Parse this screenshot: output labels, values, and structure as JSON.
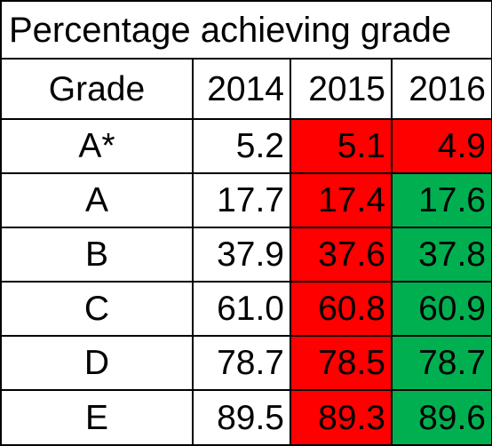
{
  "title": "Percentage achieving grade",
  "headers": {
    "grade": "Grade",
    "y2014": "2014",
    "y2015": "2015",
    "y2016": "2016"
  },
  "colors": {
    "decrease": "#ff0000",
    "increase": "#00b050",
    "border": "#000000",
    "background": "#ffffff"
  },
  "rows": [
    {
      "grade": "A*",
      "y2014": "5.2",
      "y2015": "5.1",
      "y2016": "4.9",
      "fill2015": "decrease",
      "fill2016": "decrease"
    },
    {
      "grade": "A",
      "y2014": "17.7",
      "y2015": "17.4",
      "y2016": "17.6",
      "fill2015": "decrease",
      "fill2016": "increase"
    },
    {
      "grade": "B",
      "y2014": "37.9",
      "y2015": "37.6",
      "y2016": "37.8",
      "fill2015": "decrease",
      "fill2016": "increase"
    },
    {
      "grade": "C",
      "y2014": "61.0",
      "y2015": "60.8",
      "y2016": "60.9",
      "fill2015": "decrease",
      "fill2016": "increase"
    },
    {
      "grade": "D",
      "y2014": "78.7",
      "y2015": "78.5",
      "y2016": "78.7",
      "fill2015": "decrease",
      "fill2016": "increase"
    },
    {
      "grade": "E",
      "y2014": "89.5",
      "y2015": "89.3",
      "y2016": "89.6",
      "fill2015": "decrease",
      "fill2016": "increase"
    }
  ]
}
